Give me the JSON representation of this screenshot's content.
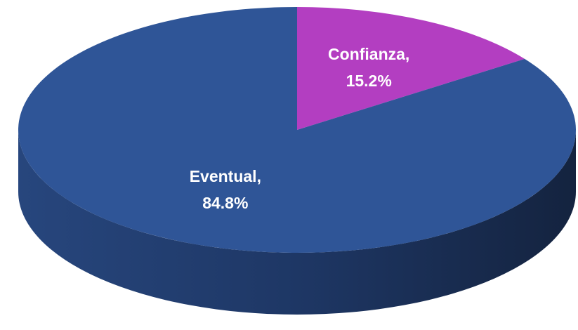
{
  "chart_data": {
    "type": "pie",
    "categories": [
      "Confianza",
      "Eventual"
    ],
    "values": [
      15.2,
      84.8
    ],
    "value_labels": [
      "15.2%",
      "84.8%"
    ],
    "label_separator": ",",
    "colors": [
      "#b33ec1",
      "#2f5597"
    ],
    "start_angle": 0,
    "three_d": true
  }
}
